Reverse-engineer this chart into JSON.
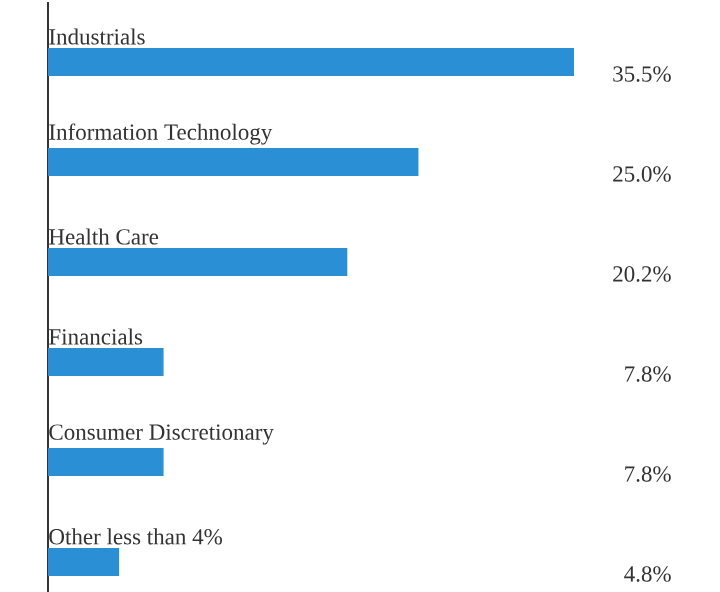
{
  "chart_data": {
    "type": "bar",
    "orientation": "horizontal",
    "color": "#2b8fd5",
    "categories": [
      "Industrials",
      "Information Technology",
      "Health Care",
      "Financials",
      "Consumer Discretionary",
      "Other less than 4%"
    ],
    "values": [
      35.5,
      25.0,
      20.2,
      7.8,
      7.8,
      4.8
    ],
    "value_labels": [
      "35.5%",
      "25.0%",
      "20.2%",
      "7.8%",
      "7.8%",
      "4.8%"
    ]
  }
}
